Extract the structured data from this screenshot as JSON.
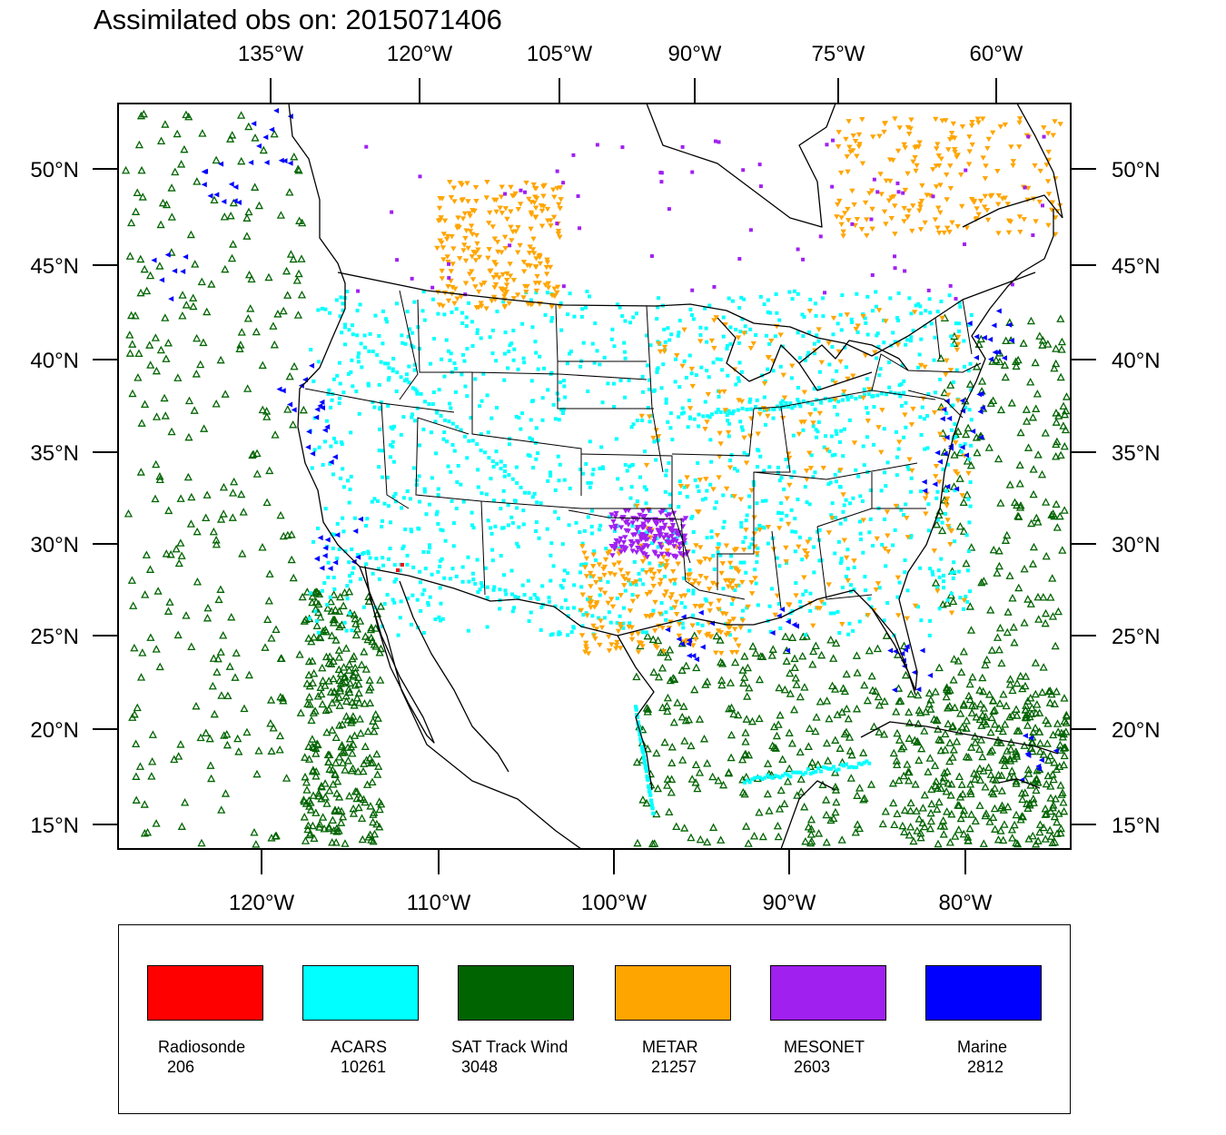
{
  "title": "Assimilated obs on: 2015071406",
  "top_lon_labels": [
    "135°W",
    "120°W",
    "105°W",
    "90°W",
    "75°W",
    "60°W"
  ],
  "bottom_lon_labels": [
    "120°W",
    "110°W",
    "100°W",
    "90°W",
    "80°W"
  ],
  "lat_labels": [
    "50°N",
    "45°N",
    "40°N",
    "35°N",
    "30°N",
    "25°N",
    "20°N",
    "15°N"
  ],
  "legend": [
    {
      "name": "Radiosonde",
      "count": "206",
      "color": "#ff0000"
    },
    {
      "name": "ACARS",
      "count": "10261",
      "color": "#00ffff"
    },
    {
      "name": "SAT Track Wind",
      "count": "3048",
      "color": "#006400"
    },
    {
      "name": "METAR",
      "count": "21257",
      "color": "#ffa500"
    },
    {
      "name": "MESONET",
      "count": "2603",
      "color": "#a020f0"
    },
    {
      "name": "Marine",
      "count": "2812",
      "color": "#0000ff"
    }
  ],
  "colors": {
    "frame": "#000000",
    "coastline": "#000000",
    "background": "#ffffff"
  }
}
